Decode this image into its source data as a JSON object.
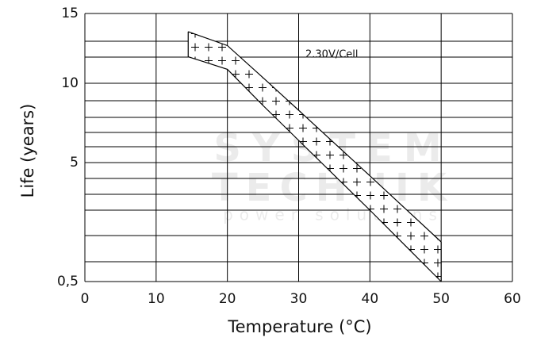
{
  "chart_data": {
    "type": "band",
    "xlabel": "Temperature (°C)",
    "ylabel": "Life (years)",
    "annotation": "2.30V/Cell",
    "watermark": [
      "SYSTEM",
      "TECHNIK",
      "power solutions"
    ],
    "xlim": [
      0,
      60
    ],
    "xticks": [
      0,
      10,
      20,
      30,
      40,
      50,
      60
    ],
    "ylim": [
      0.5,
      15
    ],
    "yticks": [
      15,
      10,
      5,
      {
        "value": 0.5,
        "label": "0,5"
      }
    ],
    "grid": true,
    "x": [
      14.5,
      20,
      25,
      30,
      40,
      50
    ],
    "series": [
      {
        "name": "upper",
        "color": "#000000",
        "values": [
          13.7,
          12.7,
          10.4,
          8.3,
          4.5,
          2.0
        ]
      },
      {
        "name": "lower",
        "color": "#000000",
        "values": [
          11.9,
          11.0,
          8.6,
          6.4,
          3.2,
          0.5
        ]
      }
    ]
  }
}
